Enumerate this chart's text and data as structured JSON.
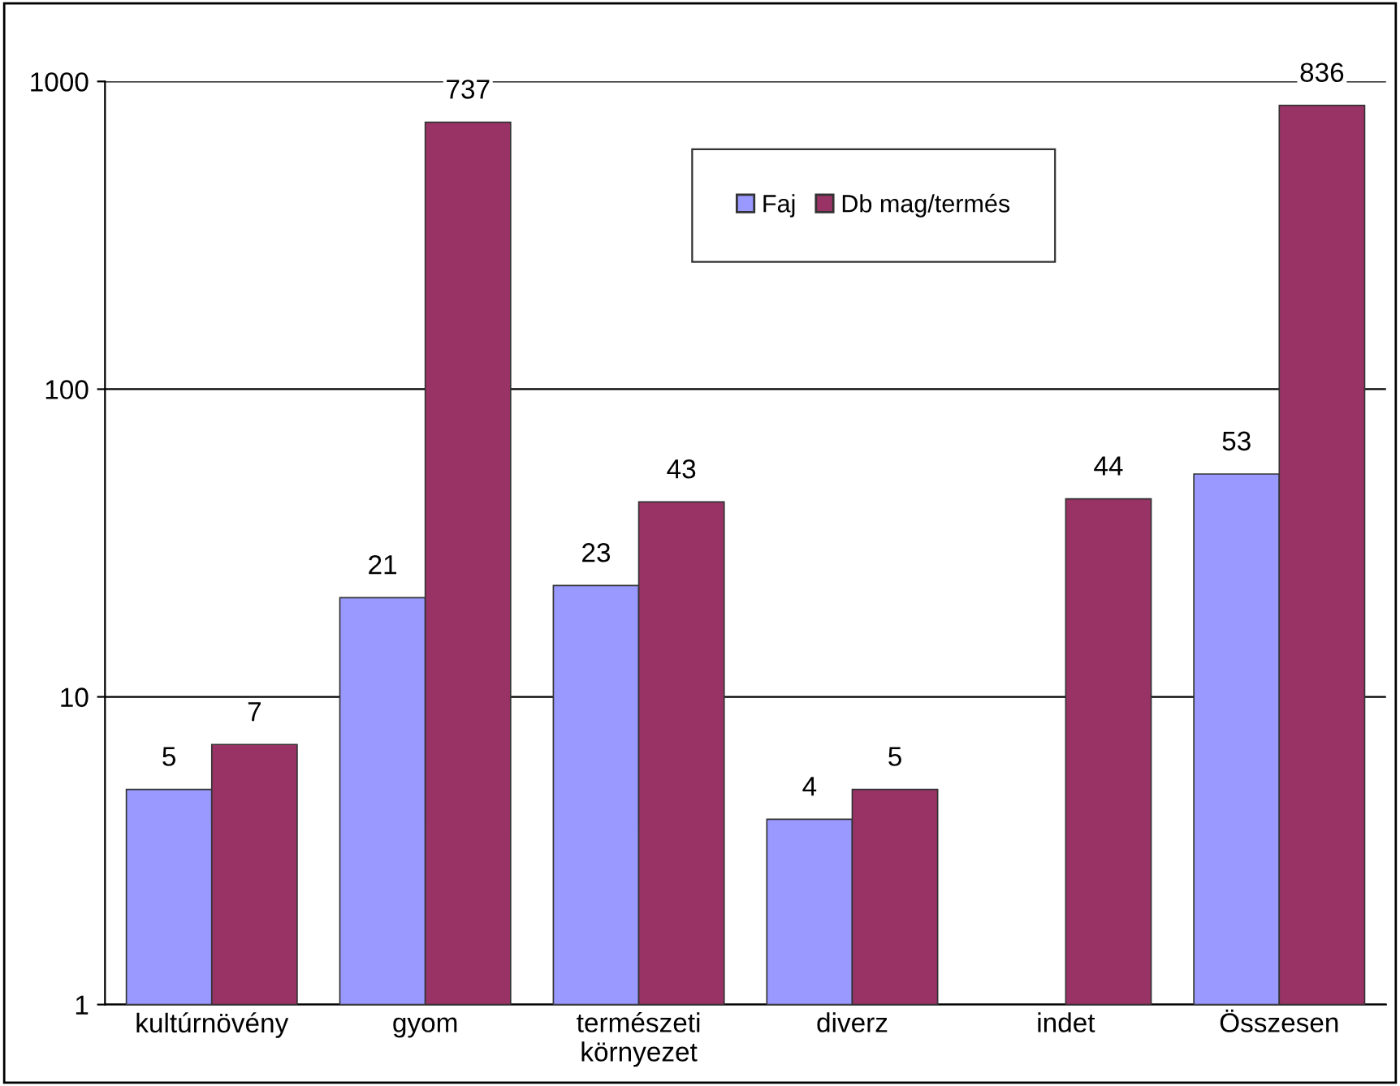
{
  "chart_data": {
    "type": "bar",
    "categories": [
      "kultúrnövény",
      "gyom",
      "természeti\nkörnyezet",
      "diverz",
      "indet",
      "Összesen"
    ],
    "series": [
      {
        "name": "Faj",
        "color": "#9999ff",
        "values": [
          5,
          21,
          23,
          4,
          null,
          53
        ]
      },
      {
        "name": "Db mag/termés",
        "color": "#993366",
        "values": [
          7,
          737,
          43,
          5,
          44,
          836
        ]
      }
    ],
    "log": true,
    "ylim": [
      1,
      1000
    ],
    "yticks": [
      1,
      10,
      100,
      1000
    ],
    "grid": "y",
    "legend": "top",
    "data_labels": true
  }
}
